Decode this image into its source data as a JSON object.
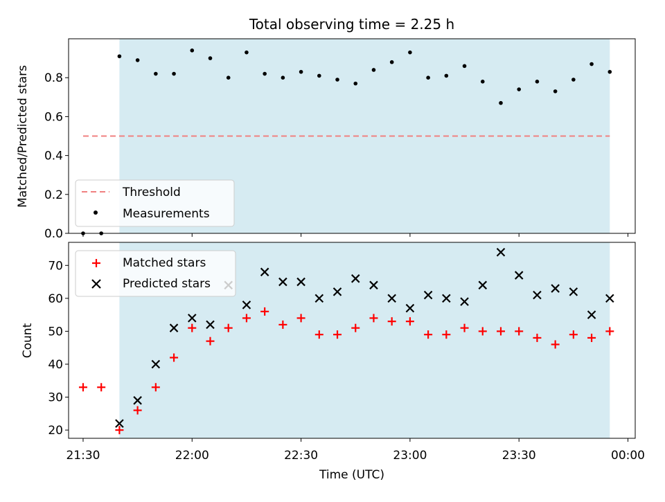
{
  "title": "Total observing time = 2.25 h",
  "colors": {
    "shade": "#add8e6",
    "threshold": "#f08080",
    "measurement": "#000000",
    "matched": "#ff0000",
    "predicted": "#000000"
  },
  "chart_data": [
    {
      "type": "scatter",
      "panel": "top",
      "ylabel": "Matched/Predicted stars",
      "ylim": [
        0,
        1.0
      ],
      "yticks": [
        0.0,
        0.2,
        0.4,
        0.6,
        0.8
      ],
      "ytick_labels": [
        "0.0",
        "0.2",
        "0.4",
        "0.6",
        "0.8"
      ],
      "x": [
        "21:30",
        "21:35",
        "21:40",
        "21:45",
        "21:50",
        "21:55",
        "22:00",
        "22:05",
        "22:10",
        "22:15",
        "22:20",
        "22:25",
        "22:30",
        "22:35",
        "22:40",
        "22:45",
        "22:50",
        "22:55",
        "23:00",
        "23:05",
        "23:10",
        "23:15",
        "23:20",
        "23:25",
        "23:30",
        "23:35",
        "23:40",
        "23:45",
        "23:50",
        "23:55"
      ],
      "threshold": {
        "name": "Threshold",
        "value": 0.5,
        "x_range": [
          "21:30",
          "23:55"
        ]
      },
      "shaded_span": [
        "21:40",
        "23:55"
      ],
      "series": [
        {
          "name": "Measurements",
          "values": [
            0.0,
            0.0,
            0.91,
            0.89,
            0.82,
            0.82,
            0.94,
            0.9,
            0.8,
            0.93,
            0.82,
            0.8,
            0.83,
            0.81,
            0.79,
            0.77,
            0.84,
            0.88,
            0.93,
            0.8,
            0.81,
            0.86,
            0.78,
            0.67,
            0.74,
            0.78,
            0.73,
            0.79,
            0.87,
            0.83
          ]
        }
      ],
      "legend": {
        "location": "lower-left",
        "entries": [
          "Threshold",
          "Measurements"
        ]
      }
    },
    {
      "type": "scatter",
      "panel": "bottom",
      "xlabel": "Time (UTC)",
      "ylabel": "Count",
      "ylim": [
        17.5,
        77
      ],
      "yticks": [
        20,
        30,
        40,
        50,
        60,
        70
      ],
      "xlim": [
        "21:26",
        "00:02"
      ],
      "xticks": [
        "21:30",
        "22:00",
        "22:30",
        "23:00",
        "23:30",
        "00:00"
      ],
      "x": [
        "21:30",
        "21:35",
        "21:40",
        "21:45",
        "21:50",
        "21:55",
        "22:00",
        "22:05",
        "22:10",
        "22:15",
        "22:20",
        "22:25",
        "22:30",
        "22:35",
        "22:40",
        "22:45",
        "22:50",
        "22:55",
        "23:00",
        "23:05",
        "23:10",
        "23:15",
        "23:20",
        "23:25",
        "23:30",
        "23:35",
        "23:40",
        "23:45",
        "23:50",
        "23:55"
      ],
      "shaded_span": [
        "21:40",
        "23:55"
      ],
      "series": [
        {
          "name": "Matched stars",
          "marker": "+",
          "values": [
            33,
            33,
            20,
            26,
            33,
            42,
            51,
            47,
            51,
            54,
            56,
            52,
            54,
            49,
            49,
            51,
            54,
            53,
            53,
            49,
            49,
            51,
            50,
            50,
            50,
            48,
            46,
            49,
            48,
            50
          ]
        },
        {
          "name": "Predicted stars",
          "marker": "x",
          "values": [
            null,
            null,
            22,
            29,
            40,
            51,
            54,
            52,
            64,
            58,
            68,
            65,
            65,
            60,
            62,
            66,
            64,
            60,
            57,
            61,
            60,
            59,
            64,
            74,
            67,
            61,
            63,
            62,
            55,
            60
          ]
        }
      ],
      "legend": {
        "location": "top-left",
        "entries": [
          "Matched stars",
          "Predicted stars"
        ]
      }
    }
  ]
}
